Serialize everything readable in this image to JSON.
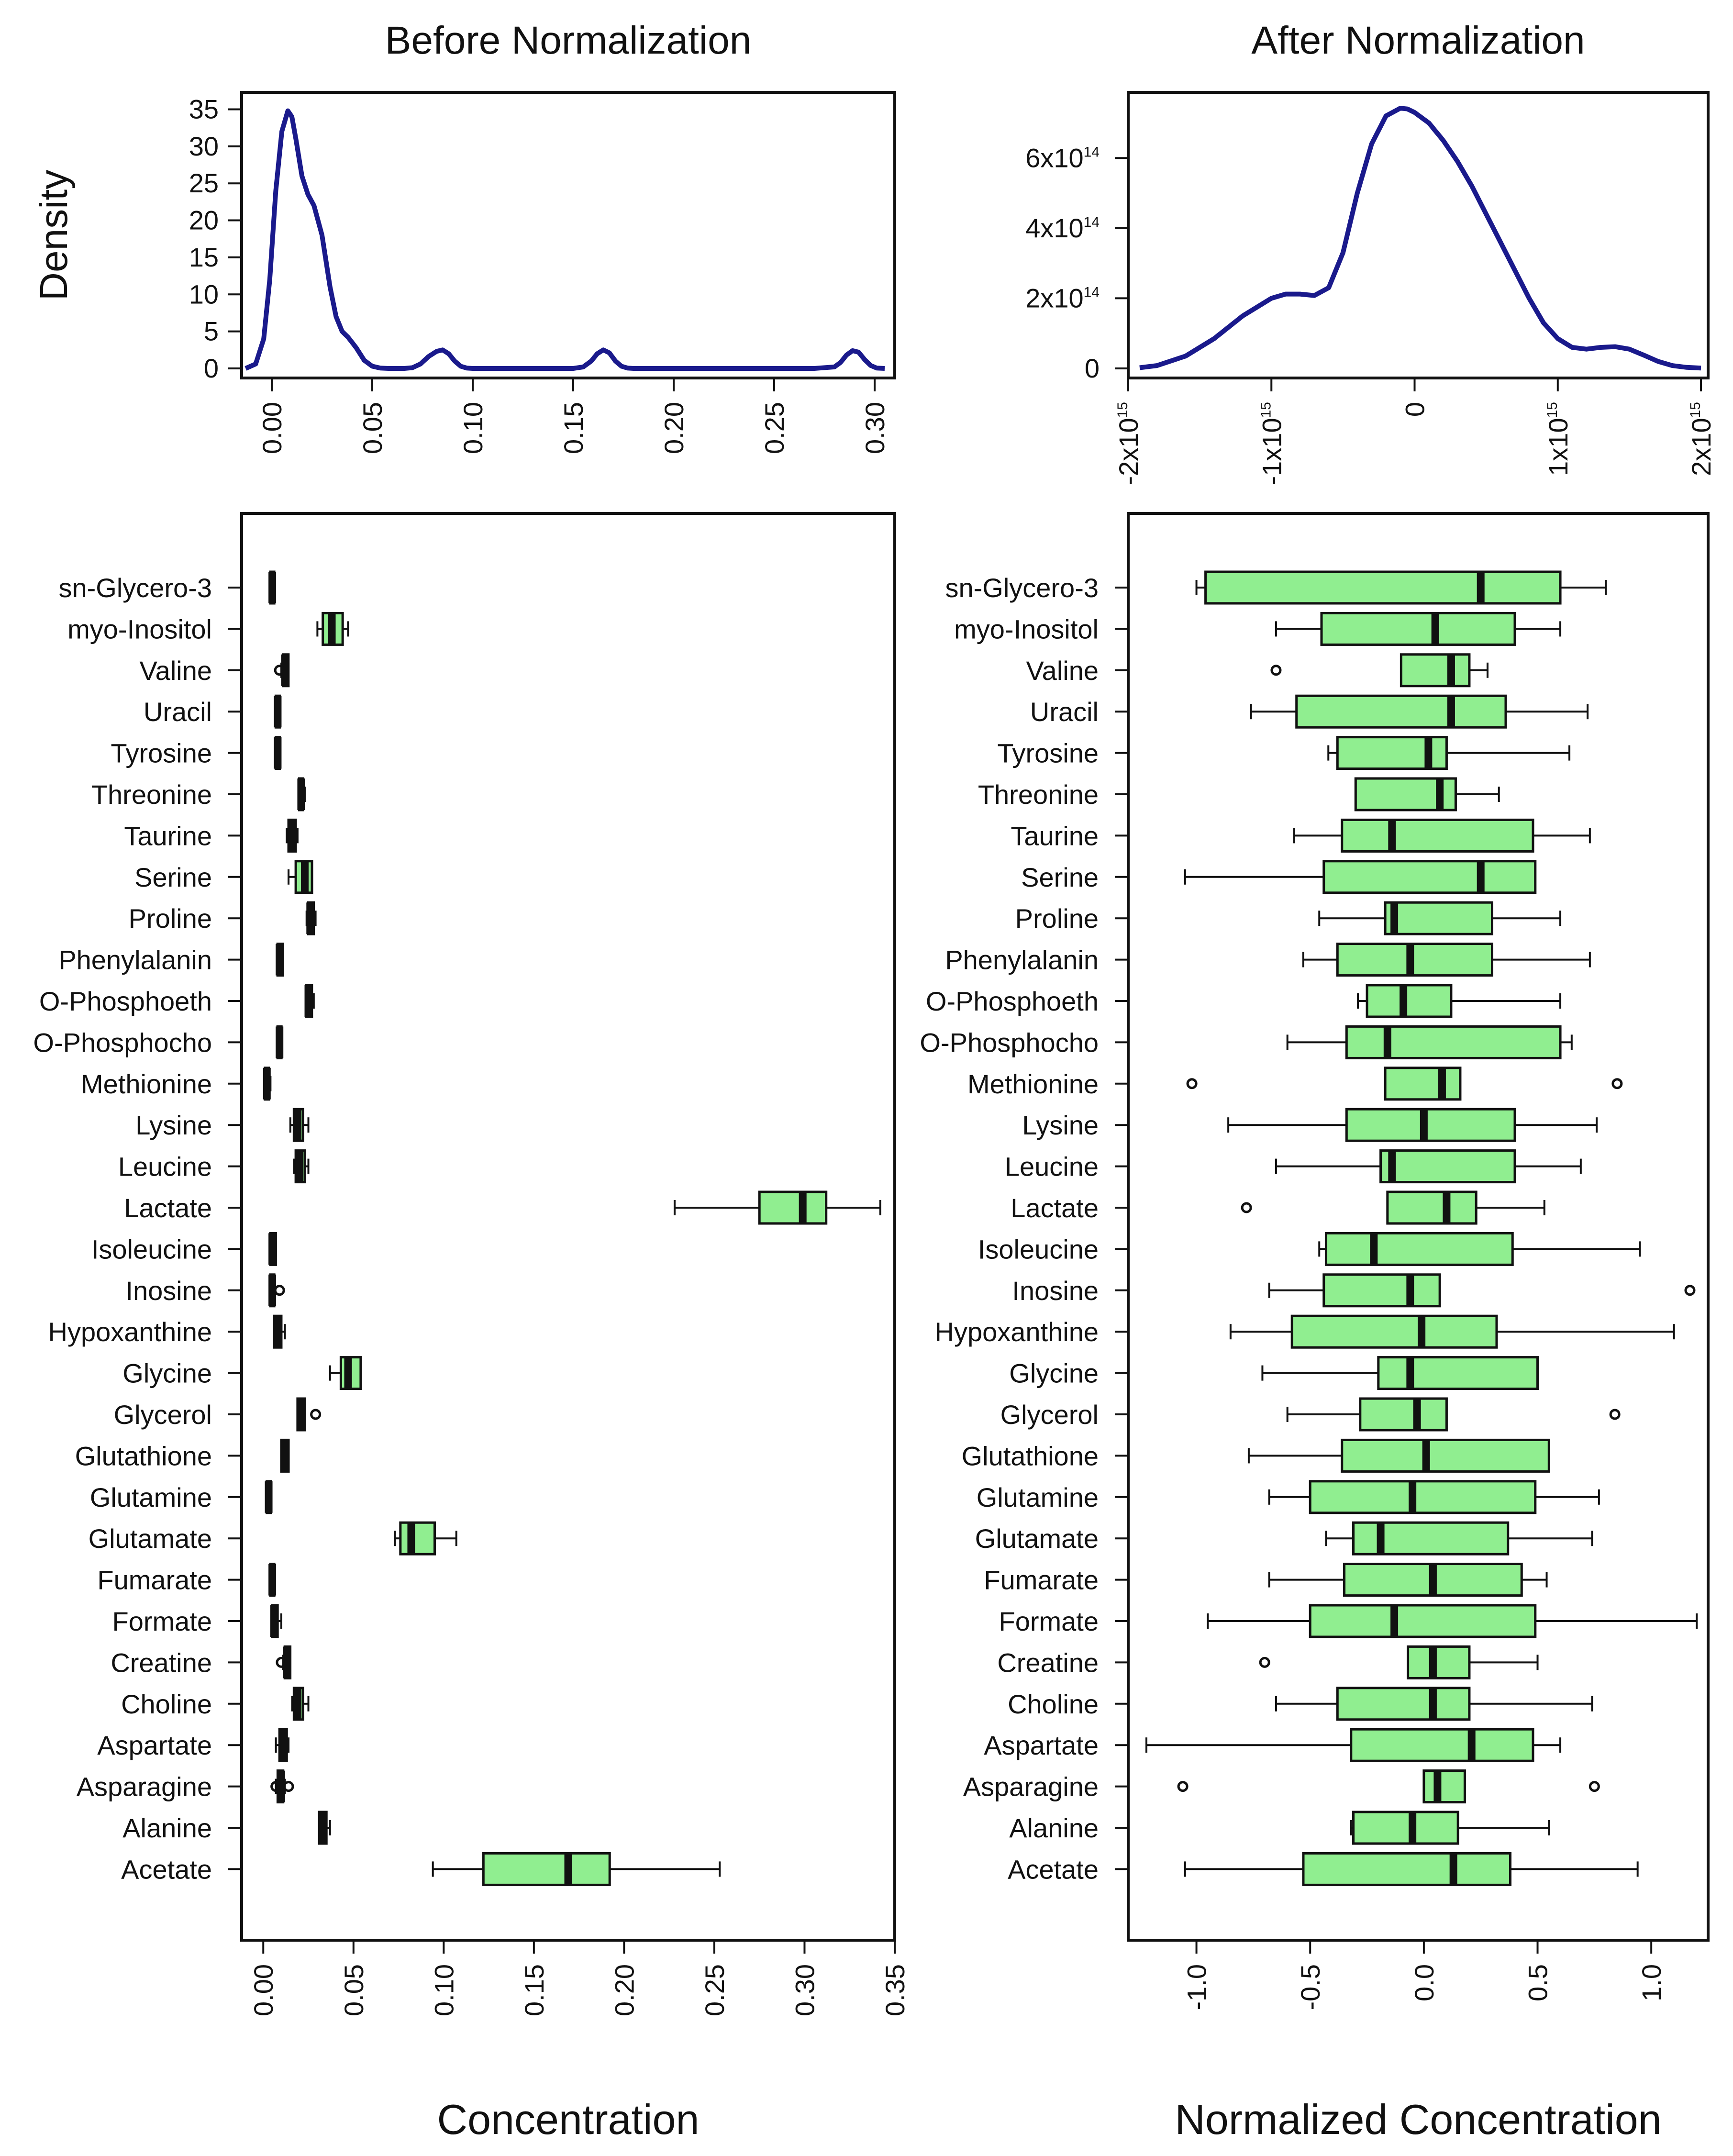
{
  "chart_data": [
    {
      "id": "density_before",
      "type": "line",
      "title": "Before Normalization",
      "ylabel": "Density",
      "xlabel": "",
      "xlim": [
        -0.015,
        0.31
      ],
      "ylim": [
        0,
        36
      ],
      "xticks": [
        0.0,
        0.05,
        0.1,
        0.15,
        0.2,
        0.25,
        0.3
      ],
      "xtick_labels": [
        "0.00",
        "0.05",
        "0.10",
        "0.15",
        "0.20",
        "0.25",
        "0.30"
      ],
      "yticks": [
        0,
        5,
        10,
        15,
        20,
        25,
        30,
        35
      ],
      "ytick_labels": [
        "0",
        "5",
        "10",
        "15",
        "20",
        "25",
        "30",
        "35"
      ],
      "color": "#1a1a8c",
      "x": [
        -0.013,
        -0.008,
        -0.004,
        -0.001,
        0.002,
        0.005,
        0.008,
        0.01,
        0.012,
        0.015,
        0.018,
        0.021,
        0.025,
        0.029,
        0.032,
        0.035,
        0.038,
        0.042,
        0.046,
        0.05,
        0.054,
        0.058,
        0.062,
        0.066,
        0.07,
        0.074,
        0.078,
        0.082,
        0.085,
        0.088,
        0.091,
        0.094,
        0.097,
        0.1,
        0.104,
        0.11,
        0.12,
        0.13,
        0.14,
        0.15,
        0.155,
        0.159,
        0.162,
        0.165,
        0.168,
        0.171,
        0.174,
        0.177,
        0.18,
        0.185,
        0.195,
        0.21,
        0.23,
        0.25,
        0.27,
        0.28,
        0.283,
        0.286,
        0.289,
        0.292,
        0.295,
        0.298,
        0.301,
        0.305
      ],
      "y": [
        0,
        0.6,
        4,
        12,
        24,
        32,
        34.8,
        34,
        31,
        26,
        23.5,
        22,
        18,
        11,
        7,
        5,
        4.2,
        2.8,
        1.1,
        0.3,
        0.05,
        0,
        0,
        0,
        0.1,
        0.6,
        1.6,
        2.3,
        2.5,
        2,
        1,
        0.3,
        0.05,
        0,
        0,
        0,
        0,
        0,
        0,
        0,
        0.2,
        1,
        2,
        2.5,
        2.1,
        1,
        0.3,
        0.05,
        0,
        0,
        0,
        0,
        0,
        0,
        0,
        0.2,
        0.8,
        1.8,
        2.4,
        2.2,
        1.2,
        0.4,
        0.05,
        0
      ]
    },
    {
      "id": "density_after",
      "type": "line",
      "title": "After Normalization",
      "ylabel": "",
      "xlabel": "",
      "xlim": [
        -2000000000000000.0,
        2050000000000000.0
      ],
      "ylim": [
        0,
        760000000000000.0
      ],
      "xticks": [
        -2000000000000000.0,
        -1000000000000000.0,
        0,
        1000000000000000.0,
        2000000000000000.0
      ],
      "xtick_labels": [
        {
          "base": "-2x10",
          "exp": "15"
        },
        {
          "base": "-1x10",
          "exp": "15"
        },
        {
          "base": "0",
          "exp": ""
        },
        {
          "base": "1x10",
          "exp": "15"
        },
        {
          "base": "2x10",
          "exp": "15"
        }
      ],
      "yticks": [
        0,
        200000000000000.0,
        400000000000000.0,
        600000000000000.0
      ],
      "ytick_labels": [
        {
          "base": "0",
          "exp": ""
        },
        {
          "base": "2x10",
          "exp": "14"
        },
        {
          "base": "4x10",
          "exp": "14"
        },
        {
          "base": "6x10",
          "exp": "14"
        }
      ],
      "color": "#1a1a8c",
      "x": [
        -1920000000000000.0,
        -1800000000000000.0,
        -1600000000000000.0,
        -1400000000000000.0,
        -1200000000000000.0,
        -1000000000000000.0,
        -900000000000000.0,
        -800000000000000.0,
        -700000000000000.0,
        -600000000000000.0,
        -500000000000000.0,
        -400000000000000.0,
        -300000000000000.0,
        -200000000000000.0,
        -100000000000000.0,
        -50000000000000.0,
        0.0,
        100000000000000.0,
        200000000000000.0,
        300000000000000.0,
        400000000000000.0,
        500000000000000.0,
        600000000000000.0,
        700000000000000.0,
        800000000000000.0,
        900000000000000.0,
        1000000000000000.0,
        1100000000000000.0,
        1200000000000000.0,
        1300000000000000.0,
        1400000000000000.0,
        1500000000000000.0,
        1600000000000000.0,
        1700000000000000.0,
        1800000000000000.0,
        1900000000000000.0,
        2000000000000000.0
      ],
      "y": [
        2000000000000.0,
        8000000000000.0,
        35000000000000.0,
        85000000000000.0,
        150000000000000.0,
        200000000000000.0,
        212000000000000.0,
        212000000000000.0,
        208000000000000.0,
        230000000000000.0,
        330000000000000.0,
        500000000000000.0,
        640000000000000.0,
        720000000000000.0,
        742000000000000.0,
        740000000000000.0,
        730000000000000.0,
        700000000000000.0,
        650000000000000.0,
        590000000000000.0,
        520000000000000.0,
        440000000000000.0,
        360000000000000.0,
        280000000000000.0,
        200000000000000.0,
        130000000000000.0,
        85000000000000.0,
        60000000000000.0,
        55000000000000.0,
        60000000000000.0,
        62000000000000.0,
        55000000000000.0,
        38000000000000.0,
        20000000000000.0,
        8000000000000.0,
        3000000000000.0,
        1000000000000.0
      ]
    },
    {
      "id": "box_before",
      "type": "box",
      "xlabel": "Concentration",
      "ylabel": "",
      "xlim": [
        -0.012,
        0.35
      ],
      "xticks": [
        0.0,
        0.05,
        0.1,
        0.15,
        0.2,
        0.25,
        0.3,
        0.35
      ],
      "xtick_labels": [
        "0.00",
        "0.05",
        "0.10",
        "0.15",
        "0.20",
        "0.25",
        "0.30",
        "0.35"
      ],
      "fill": "#90ee90",
      "boxes": [
        {
          "label": "sn-Glycero-3",
          "wlo": 0.004,
          "q1": 0.004,
          "med": 0.005,
          "q3": 0.006,
          "whi": 0.006,
          "out": []
        },
        {
          "label": "myo-Inositol",
          "wlo": 0.03,
          "q1": 0.033,
          "med": 0.038,
          "q3": 0.044,
          "whi": 0.047,
          "out": []
        },
        {
          "label": "Valine",
          "wlo": 0.01,
          "q1": 0.011,
          "med": 0.012,
          "q3": 0.014,
          "whi": 0.014,
          "out": [
            0.009
          ]
        },
        {
          "label": "Uracil",
          "wlo": 0.007,
          "q1": 0.007,
          "med": 0.008,
          "q3": 0.009,
          "whi": 0.009,
          "out": []
        },
        {
          "label": "Tyrosine",
          "wlo": 0.007,
          "q1": 0.007,
          "med": 0.008,
          "q3": 0.009,
          "whi": 0.009,
          "out": []
        },
        {
          "label": "Threonine",
          "wlo": 0.02,
          "q1": 0.02,
          "med": 0.021,
          "q3": 0.022,
          "whi": 0.023,
          "out": []
        },
        {
          "label": "Taurine",
          "wlo": 0.013,
          "q1": 0.014,
          "med": 0.016,
          "q3": 0.018,
          "whi": 0.019,
          "out": []
        },
        {
          "label": "Serine",
          "wlo": 0.014,
          "q1": 0.018,
          "med": 0.023,
          "q3": 0.027,
          "whi": 0.027,
          "out": []
        },
        {
          "label": "Proline",
          "wlo": 0.024,
          "q1": 0.025,
          "med": 0.026,
          "q3": 0.028,
          "whi": 0.029,
          "out": []
        },
        {
          "label": "Phenylalanin",
          "wlo": 0.008,
          "q1": 0.008,
          "med": 0.009,
          "q3": 0.011,
          "whi": 0.011,
          "out": []
        },
        {
          "label": "O-Phosphoeth",
          "wlo": 0.024,
          "q1": 0.024,
          "med": 0.025,
          "q3": 0.027,
          "whi": 0.028,
          "out": []
        },
        {
          "label": "O-Phosphocho",
          "wlo": 0.008,
          "q1": 0.008,
          "med": 0.009,
          "q3": 0.01,
          "whi": 0.01,
          "out": []
        },
        {
          "label": "Methionine",
          "wlo": 0.001,
          "q1": 0.001,
          "med": 0.002,
          "q3": 0.003,
          "whi": 0.004,
          "out": []
        },
        {
          "label": "Lysine",
          "wlo": 0.015,
          "q1": 0.017,
          "med": 0.019,
          "q3": 0.022,
          "whi": 0.025,
          "out": []
        },
        {
          "label": "Leucine",
          "wlo": 0.017,
          "q1": 0.018,
          "med": 0.02,
          "q3": 0.023,
          "whi": 0.025,
          "out": []
        },
        {
          "label": "Lactate",
          "wlo": 0.228,
          "q1": 0.275,
          "med": 0.299,
          "q3": 0.312,
          "whi": 0.342,
          "out": []
        },
        {
          "label": "Isoleucine",
          "wlo": 0.004,
          "q1": 0.004,
          "med": 0.005,
          "q3": 0.007,
          "whi": 0.007,
          "out": []
        },
        {
          "label": "Inosine",
          "wlo": 0.004,
          "q1": 0.004,
          "med": 0.005,
          "q3": 0.006,
          "whi": 0.006,
          "out": [
            0.009
          ]
        },
        {
          "label": "Hypoxanthine",
          "wlo": 0.006,
          "q1": 0.006,
          "med": 0.008,
          "q3": 0.01,
          "whi": 0.012,
          "out": []
        },
        {
          "label": "Glycine",
          "wlo": 0.037,
          "q1": 0.043,
          "med": 0.047,
          "q3": 0.054,
          "whi": 0.054,
          "out": []
        },
        {
          "label": "Glycerol",
          "wlo": 0.019,
          "q1": 0.019,
          "med": 0.021,
          "q3": 0.023,
          "whi": 0.023,
          "out": [
            0.029
          ]
        },
        {
          "label": "Glutathione",
          "wlo": 0.01,
          "q1": 0.01,
          "med": 0.012,
          "q3": 0.014,
          "whi": 0.014,
          "out": []
        },
        {
          "label": "Glutamine",
          "wlo": 0.002,
          "q1": 0.002,
          "med": 0.003,
          "q3": 0.004,
          "whi": 0.004,
          "out": []
        },
        {
          "label": "Glutamate",
          "wlo": 0.073,
          "q1": 0.076,
          "med": 0.082,
          "q3": 0.095,
          "whi": 0.107,
          "out": []
        },
        {
          "label": "Fumarate",
          "wlo": 0.004,
          "q1": 0.004,
          "med": 0.005,
          "q3": 0.006,
          "whi": 0.006,
          "out": []
        },
        {
          "label": "Formate",
          "wlo": 0.005,
          "q1": 0.005,
          "med": 0.006,
          "q3": 0.008,
          "whi": 0.01,
          "out": []
        },
        {
          "label": "Creatine",
          "wlo": 0.011,
          "q1": 0.012,
          "med": 0.013,
          "q3": 0.015,
          "whi": 0.015,
          "out": [
            0.01
          ]
        },
        {
          "label": "Choline",
          "wlo": 0.016,
          "q1": 0.017,
          "med": 0.019,
          "q3": 0.022,
          "whi": 0.025,
          "out": []
        },
        {
          "label": "Aspartate",
          "wlo": 0.007,
          "q1": 0.009,
          "med": 0.011,
          "q3": 0.013,
          "whi": 0.014,
          "out": []
        },
        {
          "label": "Asparagine",
          "wlo": 0.007,
          "q1": 0.008,
          "med": 0.01,
          "q3": 0.011,
          "whi": 0.012,
          "out": [
            0.007,
            0.014
          ]
        },
        {
          "label": "Alanine",
          "wlo": 0.031,
          "q1": 0.031,
          "med": 0.033,
          "q3": 0.035,
          "whi": 0.037,
          "out": []
        },
        {
          "label": "Acetate",
          "wlo": 0.094,
          "q1": 0.122,
          "med": 0.169,
          "q3": 0.192,
          "whi": 0.253,
          "out": []
        }
      ]
    },
    {
      "id": "box_after",
      "type": "box",
      "xlabel": "Normalized Concentration",
      "ylabel": "",
      "xlim": [
        -1.3,
        1.25
      ],
      "xticks": [
        -1.0,
        -0.5,
        0.0,
        0.5,
        1.0
      ],
      "xtick_labels": [
        "-1.0",
        "-0.5",
        "0.0",
        "0.5",
        "1.0"
      ],
      "fill": "#90ee90",
      "boxes": [
        {
          "label": "sn-Glycero-3",
          "wlo": -1.0,
          "q1": -0.96,
          "med": 0.25,
          "q3": 0.6,
          "whi": 0.8,
          "out": []
        },
        {
          "label": "myo-Inositol",
          "wlo": -0.65,
          "q1": -0.45,
          "med": 0.05,
          "q3": 0.4,
          "whi": 0.6,
          "out": []
        },
        {
          "label": "Valine",
          "wlo": -0.1,
          "q1": -0.1,
          "med": 0.12,
          "q3": 0.2,
          "whi": 0.28,
          "out": [
            -0.65
          ]
        },
        {
          "label": "Uracil",
          "wlo": -0.76,
          "q1": -0.56,
          "med": 0.12,
          "q3": 0.36,
          "whi": 0.72,
          "out": []
        },
        {
          "label": "Tyrosine",
          "wlo": -0.42,
          "q1": -0.38,
          "med": 0.02,
          "q3": 0.1,
          "whi": 0.64,
          "out": []
        },
        {
          "label": "Threonine",
          "wlo": -0.3,
          "q1": -0.3,
          "med": 0.07,
          "q3": 0.14,
          "whi": 0.33,
          "out": []
        },
        {
          "label": "Taurine",
          "wlo": -0.57,
          "q1": -0.36,
          "med": -0.14,
          "q3": 0.48,
          "whi": 0.73,
          "out": []
        },
        {
          "label": "Serine",
          "wlo": -1.05,
          "q1": -0.44,
          "med": 0.25,
          "q3": 0.49,
          "whi": 0.49,
          "out": []
        },
        {
          "label": "Proline",
          "wlo": -0.46,
          "q1": -0.17,
          "med": -0.13,
          "q3": 0.3,
          "whi": 0.6,
          "out": []
        },
        {
          "label": "Phenylalanin",
          "wlo": -0.53,
          "q1": -0.38,
          "med": -0.06,
          "q3": 0.3,
          "whi": 0.73,
          "out": []
        },
        {
          "label": "O-Phosphoeth",
          "wlo": -0.29,
          "q1": -0.25,
          "med": -0.09,
          "q3": 0.12,
          "whi": 0.6,
          "out": []
        },
        {
          "label": "O-Phosphocho",
          "wlo": -0.6,
          "q1": -0.34,
          "med": -0.16,
          "q3": 0.6,
          "whi": 0.65,
          "out": []
        },
        {
          "label": "Methionine",
          "wlo": -0.17,
          "q1": -0.17,
          "med": 0.08,
          "q3": 0.16,
          "whi": 0.16,
          "out": [
            -1.02,
            0.85
          ]
        },
        {
          "label": "Lysine",
          "wlo": -0.86,
          "q1": -0.34,
          "med": 0.0,
          "q3": 0.4,
          "whi": 0.76,
          "out": []
        },
        {
          "label": "Leucine",
          "wlo": -0.65,
          "q1": -0.19,
          "med": -0.14,
          "q3": 0.4,
          "whi": 0.69,
          "out": []
        },
        {
          "label": "Lactate",
          "wlo": -0.16,
          "q1": -0.16,
          "med": 0.1,
          "q3": 0.23,
          "whi": 0.53,
          "out": [
            -0.78
          ]
        },
        {
          "label": "Isoleucine",
          "wlo": -0.46,
          "q1": -0.43,
          "med": -0.22,
          "q3": 0.39,
          "whi": 0.95,
          "out": []
        },
        {
          "label": "Inosine",
          "wlo": -0.68,
          "q1": -0.44,
          "med": -0.06,
          "q3": 0.07,
          "whi": 0.07,
          "out": [
            1.17
          ]
        },
        {
          "label": "Hypoxanthine",
          "wlo": -0.85,
          "q1": -0.58,
          "med": -0.01,
          "q3": 0.32,
          "whi": 1.1,
          "out": []
        },
        {
          "label": "Glycine",
          "wlo": -0.71,
          "q1": -0.2,
          "med": -0.06,
          "q3": 0.5,
          "whi": 0.5,
          "out": []
        },
        {
          "label": "Glycerol",
          "wlo": -0.6,
          "q1": -0.28,
          "med": -0.03,
          "q3": 0.1,
          "whi": 0.1,
          "out": [
            0.84
          ]
        },
        {
          "label": "Glutathione",
          "wlo": -0.77,
          "q1": -0.36,
          "med": 0.01,
          "q3": 0.55,
          "whi": 0.55,
          "out": []
        },
        {
          "label": "Glutamine",
          "wlo": -0.68,
          "q1": -0.5,
          "med": -0.05,
          "q3": 0.49,
          "whi": 0.77,
          "out": []
        },
        {
          "label": "Glutamate",
          "wlo": -0.43,
          "q1": -0.31,
          "med": -0.19,
          "q3": 0.37,
          "whi": 0.74,
          "out": []
        },
        {
          "label": "Fumarate",
          "wlo": -0.68,
          "q1": -0.35,
          "med": 0.04,
          "q3": 0.43,
          "whi": 0.54,
          "out": []
        },
        {
          "label": "Formate",
          "wlo": -0.95,
          "q1": -0.5,
          "med": -0.13,
          "q3": 0.49,
          "whi": 1.2,
          "out": []
        },
        {
          "label": "Creatine",
          "wlo": -0.07,
          "q1": -0.07,
          "med": 0.04,
          "q3": 0.2,
          "whi": 0.5,
          "out": [
            -0.7
          ]
        },
        {
          "label": "Choline",
          "wlo": -0.65,
          "q1": -0.38,
          "med": 0.04,
          "q3": 0.2,
          "whi": 0.74,
          "out": []
        },
        {
          "label": "Aspartate",
          "wlo": -1.22,
          "q1": -0.32,
          "med": 0.21,
          "q3": 0.48,
          "whi": 0.6,
          "out": []
        },
        {
          "label": "Asparagine",
          "wlo": 0.0,
          "q1": 0.0,
          "med": 0.06,
          "q3": 0.18,
          "whi": 0.18,
          "out": [
            -1.06,
            0.75
          ]
        },
        {
          "label": "Alanine",
          "wlo": -0.32,
          "q1": -0.31,
          "med": -0.05,
          "q3": 0.15,
          "whi": 0.55,
          "out": []
        },
        {
          "label": "Acetate",
          "wlo": -1.05,
          "q1": -0.53,
          "med": 0.13,
          "q3": 0.38,
          "whi": 0.94,
          "out": []
        }
      ]
    }
  ]
}
